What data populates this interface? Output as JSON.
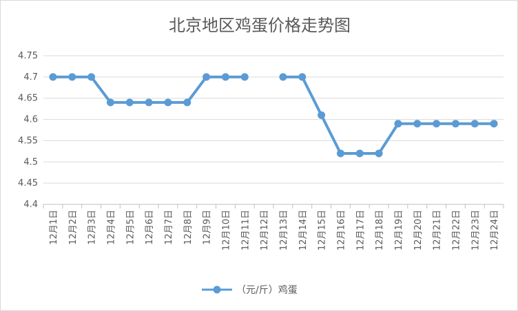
{
  "chart_data": {
    "type": "line",
    "title": "北京地区鸡蛋价格走势图",
    "xlabel": "",
    "ylabel": "",
    "categories": [
      "12月1日",
      "12月2日",
      "12月3日",
      "12月4日",
      "12月5日",
      "12月6日",
      "12月7日",
      "12月8日",
      "12月9日",
      "12月10日",
      "12月11日",
      "12月12日",
      "12月13日",
      "12月14日",
      "12月15日",
      "12月16日",
      "12月17日",
      "12月18日",
      "12月19日",
      "12月20日",
      "12月21日",
      "12月22日",
      "12月23日",
      "12月24日"
    ],
    "series": [
      {
        "name": "（元/斤）鸡蛋",
        "values": [
          4.7,
          4.7,
          4.7,
          4.64,
          4.64,
          4.64,
          4.64,
          4.64,
          4.7,
          4.7,
          4.7,
          null,
          4.7,
          4.7,
          4.61,
          4.52,
          4.52,
          4.52,
          4.59,
          4.59,
          4.59,
          4.59,
          4.59,
          4.59
        ]
      }
    ],
    "ylim": [
      4.4,
      4.75
    ],
    "yticks": [
      "4.4",
      "4.45",
      "4.5",
      "4.55",
      "4.6",
      "4.65",
      "4.7",
      "4.75"
    ],
    "grid": true,
    "legend": "bottom",
    "colors": {
      "line": "#5b9bd5",
      "grid": "#d9d9d9",
      "axis": "#bfbfbf",
      "text": "#595959"
    }
  }
}
